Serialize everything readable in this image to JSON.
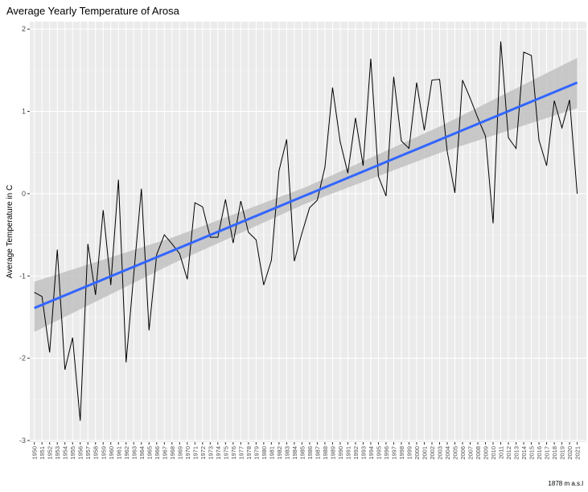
{
  "chart_data": {
    "type": "line",
    "title": "Average Yearly Temperature of Arosa",
    "ylabel": "Average Temperature in C",
    "caption": "1878 m a.s.l",
    "x": [
      1950,
      1951,
      1952,
      1953,
      1954,
      1955,
      1956,
      1957,
      1958,
      1959,
      1960,
      1961,
      1962,
      1963,
      1964,
      1965,
      1966,
      1967,
      1968,
      1969,
      1970,
      1971,
      1972,
      1973,
      1974,
      1975,
      1976,
      1977,
      1978,
      1979,
      1980,
      1981,
      1982,
      1983,
      1984,
      1985,
      1986,
      1987,
      1988,
      1989,
      1990,
      1991,
      1992,
      1993,
      1994,
      1995,
      1996,
      1997,
      1998,
      1999,
      2000,
      2001,
      2002,
      2003,
      2004,
      2005,
      2006,
      2007,
      2008,
      2009,
      2010,
      2011,
      2012,
      2013,
      2014,
      2015,
      2016,
      2017,
      2018,
      2019,
      2020,
      2021
    ],
    "series": [
      {
        "color": "#000000",
        "values": [
          -1.2,
          -1.25,
          -1.93,
          -0.68,
          -2.14,
          -1.75,
          -2.76,
          -0.61,
          -1.23,
          -0.2,
          -1.11,
          0.17,
          -2.05,
          -0.98,
          0.06,
          -1.66,
          -0.74,
          -0.5,
          -0.61,
          -0.73,
          -1.04,
          -0.11,
          -0.16,
          -0.53,
          -0.53,
          -0.07,
          -0.6,
          -0.09,
          -0.47,
          -0.56,
          -1.11,
          -0.81,
          0.28,
          0.66,
          -0.82,
          -0.48,
          -0.17,
          -0.08,
          0.32,
          1.29,
          0.63,
          0.25,
          0.92,
          0.34,
          1.64,
          0.21,
          -0.03,
          1.42,
          0.64,
          0.55,
          1.35,
          0.77,
          1.38,
          1.39,
          0.51,
          0.01,
          1.38,
          1.16,
          0.92,
          0.7,
          -0.36,
          1.85,
          0.68,
          0.55,
          1.72,
          1.68,
          0.65,
          0.34,
          1.13,
          0.8,
          1.14,
          0.0
        ]
      }
    ],
    "trend": {
      "color": "#3366ff",
      "x": [
        1950,
        2021
      ],
      "values": [
        -1.39,
        1.35
      ]
    },
    "band": {
      "color": "#bebebe",
      "x": [
        1950,
        1968,
        1985.5,
        2003,
        2021
      ],
      "lower": [
        -1.68,
        -0.855,
        -0.12,
        0.495,
        1.04
      ],
      "upper": [
        -1.07,
        -0.535,
        0.08,
        0.815,
        1.65
      ]
    },
    "xlim": [
      1949.4,
      2022.2
    ],
    "ylim": [
      -3.02,
      2.09
    ],
    "yticks": [
      -3,
      -2,
      -1,
      0,
      1,
      2
    ],
    "grid": true
  }
}
